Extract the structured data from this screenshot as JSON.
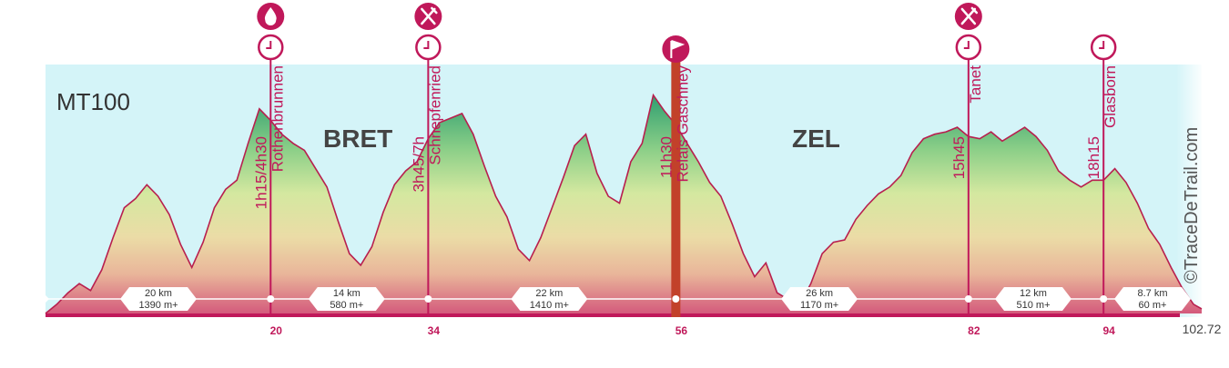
{
  "chart_data": {
    "type": "area",
    "title": "MT100",
    "watermark": "©TraceDeTrail.com",
    "x_end_label": "102.72",
    "xlim": [
      0,
      102.72
    ],
    "ylim": [
      0,
      100
    ],
    "regions": [
      "BRET",
      "ZEL"
    ],
    "profile": [
      [
        0,
        0
      ],
      [
        1,
        4
      ],
      [
        2,
        9
      ],
      [
        3,
        13
      ],
      [
        4,
        10
      ],
      [
        5,
        19
      ],
      [
        6,
        33
      ],
      [
        7,
        46
      ],
      [
        8,
        50
      ],
      [
        9,
        56
      ],
      [
        10,
        51
      ],
      [
        11,
        43
      ],
      [
        12,
        30
      ],
      [
        13,
        20
      ],
      [
        14,
        31
      ],
      [
        15,
        46
      ],
      [
        16,
        54
      ],
      [
        17,
        58
      ],
      [
        18,
        74
      ],
      [
        19,
        89
      ],
      [
        20,
        84
      ],
      [
        21,
        78
      ],
      [
        22,
        74
      ],
      [
        23,
        71
      ],
      [
        24,
        63
      ],
      [
        25,
        55
      ],
      [
        26,
        40
      ],
      [
        27,
        26
      ],
      [
        28,
        21
      ],
      [
        29,
        29
      ],
      [
        30,
        44
      ],
      [
        31,
        56
      ],
      [
        32,
        62
      ],
      [
        33,
        66
      ],
      [
        34,
        76
      ],
      [
        35,
        83
      ],
      [
        36,
        85
      ],
      [
        37,
        87
      ],
      [
        38,
        78
      ],
      [
        39,
        64
      ],
      [
        40,
        51
      ],
      [
        41,
        42
      ],
      [
        42,
        28
      ],
      [
        43,
        23
      ],
      [
        44,
        33
      ],
      [
        45,
        46
      ],
      [
        46,
        59
      ],
      [
        47,
        73
      ],
      [
        48,
        78
      ],
      [
        49,
        61
      ],
      [
        50,
        51
      ],
      [
        51,
        48
      ],
      [
        52,
        66
      ],
      [
        53,
        74
      ],
      [
        54,
        95
      ],
      [
        55,
        88
      ],
      [
        56,
        82
      ],
      [
        57,
        74
      ],
      [
        58,
        66
      ],
      [
        59,
        57
      ],
      [
        60,
        51
      ],
      [
        61,
        39
      ],
      [
        62,
        26
      ],
      [
        63,
        16
      ],
      [
        64,
        22
      ],
      [
        65,
        9
      ],
      [
        66,
        6
      ],
      [
        67,
        4
      ],
      [
        68,
        13
      ],
      [
        69,
        26
      ],
      [
        70,
        31
      ],
      [
        71,
        32
      ],
      [
        72,
        41
      ],
      [
        73,
        47
      ],
      [
        74,
        52
      ],
      [
        75,
        55
      ],
      [
        76,
        60
      ],
      [
        77,
        70
      ],
      [
        78,
        76
      ],
      [
        79,
        78
      ],
      [
        80,
        79
      ],
      [
        81,
        81
      ],
      [
        82,
        77
      ],
      [
        83,
        76
      ],
      [
        84,
        79
      ],
      [
        85,
        75
      ],
      [
        86,
        78
      ],
      [
        87,
        81
      ],
      [
        88,
        77
      ],
      [
        89,
        71
      ],
      [
        90,
        62
      ],
      [
        91,
        58
      ],
      [
        92,
        55
      ],
      [
        93,
        58
      ],
      [
        94,
        58
      ],
      [
        95,
        63
      ],
      [
        96,
        57
      ],
      [
        97,
        48
      ],
      [
        98,
        37
      ],
      [
        99,
        30
      ],
      [
        100,
        20
      ],
      [
        101,
        11
      ],
      [
        102,
        4
      ],
      [
        102.72,
        2
      ]
    ],
    "checkpoints": [
      {
        "km": 20,
        "km_label": "20",
        "name": "Rothenbrunnen",
        "time": "1h15/4h30",
        "service": "water",
        "is_major": false
      },
      {
        "km": 34,
        "km_label": "34",
        "name": "Schnepfenried",
        "time": "3h45/7h",
        "service": "food",
        "is_major": false
      },
      {
        "km": 56,
        "km_label": "56",
        "name": "Relais Gaschney",
        "time": "11h30",
        "service": "flag",
        "is_major": true
      },
      {
        "km": 82,
        "km_label": "82",
        "name": "Tanet",
        "time": "15h45",
        "service": "food",
        "is_major": false
      },
      {
        "km": 94,
        "km_label": "94",
        "name": "Glasborn",
        "time": "18h15",
        "service": "none",
        "is_major": false
      }
    ],
    "segments": [
      {
        "distance": "20 km",
        "gain": "1390 m+"
      },
      {
        "distance": "14 km",
        "gain": "580 m+"
      },
      {
        "distance": "22 km",
        "gain": "1410 m+"
      },
      {
        "distance": "26 km",
        "gain": "1170 m+"
      },
      {
        "distance": "12 km",
        "gain": "510 m+"
      },
      {
        "distance": "8.7 km",
        "gain": "60 m+"
      }
    ],
    "colors": {
      "sky": "#d4f4f8",
      "line": "#b81f4e",
      "checkpoint": "#c0185a",
      "major": "#c2412a",
      "gradient": [
        "#3aa876",
        "#c7e39a",
        "#e8e4a6",
        "#e9b197",
        "#d65a7a"
      ]
    }
  }
}
